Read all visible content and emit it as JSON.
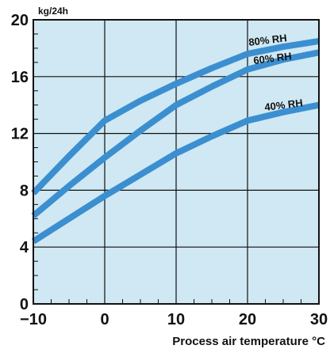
{
  "chart_data": {
    "type": "line",
    "title": "",
    "xlabel": "Process air temperature °C",
    "ylabel": "kg/24h",
    "xlim": [
      -10,
      30
    ],
    "ylim": [
      0,
      20
    ],
    "x_ticks": [
      -10,
      0,
      10,
      20,
      30
    ],
    "x_tick_labels": [
      "−10",
      "0",
      "10",
      "20",
      "30"
    ],
    "y_ticks": [
      0,
      4,
      8,
      12,
      16,
      20
    ],
    "y_tick_labels": [
      "0",
      "4",
      "8",
      "12",
      "16",
      "20"
    ],
    "grid": true,
    "legend": "inline labels near line ends",
    "colors": {
      "plot_background": "#cfe8f3",
      "line": "#3b8fd0",
      "grid": "#111111"
    },
    "series": [
      {
        "name": "80% RH",
        "x": [
          -10,
          -5,
          0,
          5,
          10,
          15,
          20,
          25,
          30
        ],
        "y": [
          7.8,
          10.4,
          12.9,
          14.3,
          15.5,
          16.6,
          17.6,
          18.1,
          18.5
        ]
      },
      {
        "name": "60% RH",
        "x": [
          -10,
          -5,
          0,
          5,
          10,
          15,
          20,
          25,
          30
        ],
        "y": [
          6.2,
          8.3,
          10.3,
          12.2,
          14.0,
          15.3,
          16.5,
          17.2,
          17.7
        ]
      },
      {
        "name": "40% RH",
        "x": [
          -10,
          -5,
          0,
          5,
          10,
          15,
          20,
          25,
          30
        ],
        "y": [
          4.4,
          6.0,
          7.6,
          9.1,
          10.6,
          11.8,
          12.9,
          13.5,
          14.0
        ]
      }
    ]
  }
}
